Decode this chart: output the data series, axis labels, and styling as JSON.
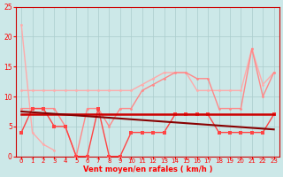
{
  "x": [
    0,
    1,
    2,
    3,
    4,
    5,
    6,
    7,
    8,
    9,
    10,
    11,
    12,
    13,
    14,
    15,
    16,
    17,
    18,
    19,
    20,
    21,
    22,
    23
  ],
  "line_steep": [
    22,
    4,
    2,
    1,
    null,
    null,
    null,
    null,
    null,
    null,
    null,
    null,
    null,
    null,
    null,
    null,
    null,
    null,
    null,
    null,
    null,
    null,
    null,
    null
  ],
  "line_upper": [
    11,
    11,
    11,
    11,
    11,
    11,
    11,
    11,
    11,
    11,
    11,
    12,
    13,
    14,
    14,
    14,
    11,
    11,
    11,
    11,
    11,
    18,
    12,
    14
  ],
  "line_mid": [
    8,
    8,
    8,
    8,
    5,
    0,
    8,
    8,
    5,
    8,
    8,
    11,
    12,
    13,
    14,
    14,
    13,
    13,
    8,
    8,
    8,
    18,
    10,
    14
  ],
  "line_flat_red": [
    7,
    7,
    7,
    7,
    7,
    7,
    7,
    7,
    7,
    7,
    7,
    7,
    7,
    7,
    7,
    7,
    7,
    7,
    7,
    7,
    7,
    7,
    7,
    7
  ],
  "line_low_pink": [
    4,
    8,
    8,
    5,
    5,
    0,
    0,
    8,
    0,
    0,
    4,
    4,
    4,
    4,
    7,
    7,
    7,
    7,
    4,
    4,
    4,
    4,
    4,
    7
  ],
  "trend_x": [
    0,
    23
  ],
  "trend_y": [
    7.5,
    4.5
  ],
  "bg_color": "#cce8e8",
  "grid_color": "#aacccc",
  "line_steep_color": "#ffaaaa",
  "line_upper_color": "#ffaaaa",
  "line_mid_color": "#ff8888",
  "line_flat_red_color": "#cc0000",
  "line_low_pink_color": "#ff4444",
  "trend_color": "#880000",
  "xlabel": "Vent moyen/en rafales ( km/h )",
  "ylim": [
    0,
    25
  ],
  "xlim_min": -0.5,
  "xlim_max": 23.5,
  "yticks": [
    0,
    5,
    10,
    15,
    20,
    25
  ],
  "xticks": [
    0,
    1,
    2,
    3,
    4,
    5,
    6,
    7,
    8,
    9,
    10,
    11,
    12,
    13,
    14,
    15,
    16,
    17,
    18,
    19,
    20,
    21,
    22,
    23
  ]
}
